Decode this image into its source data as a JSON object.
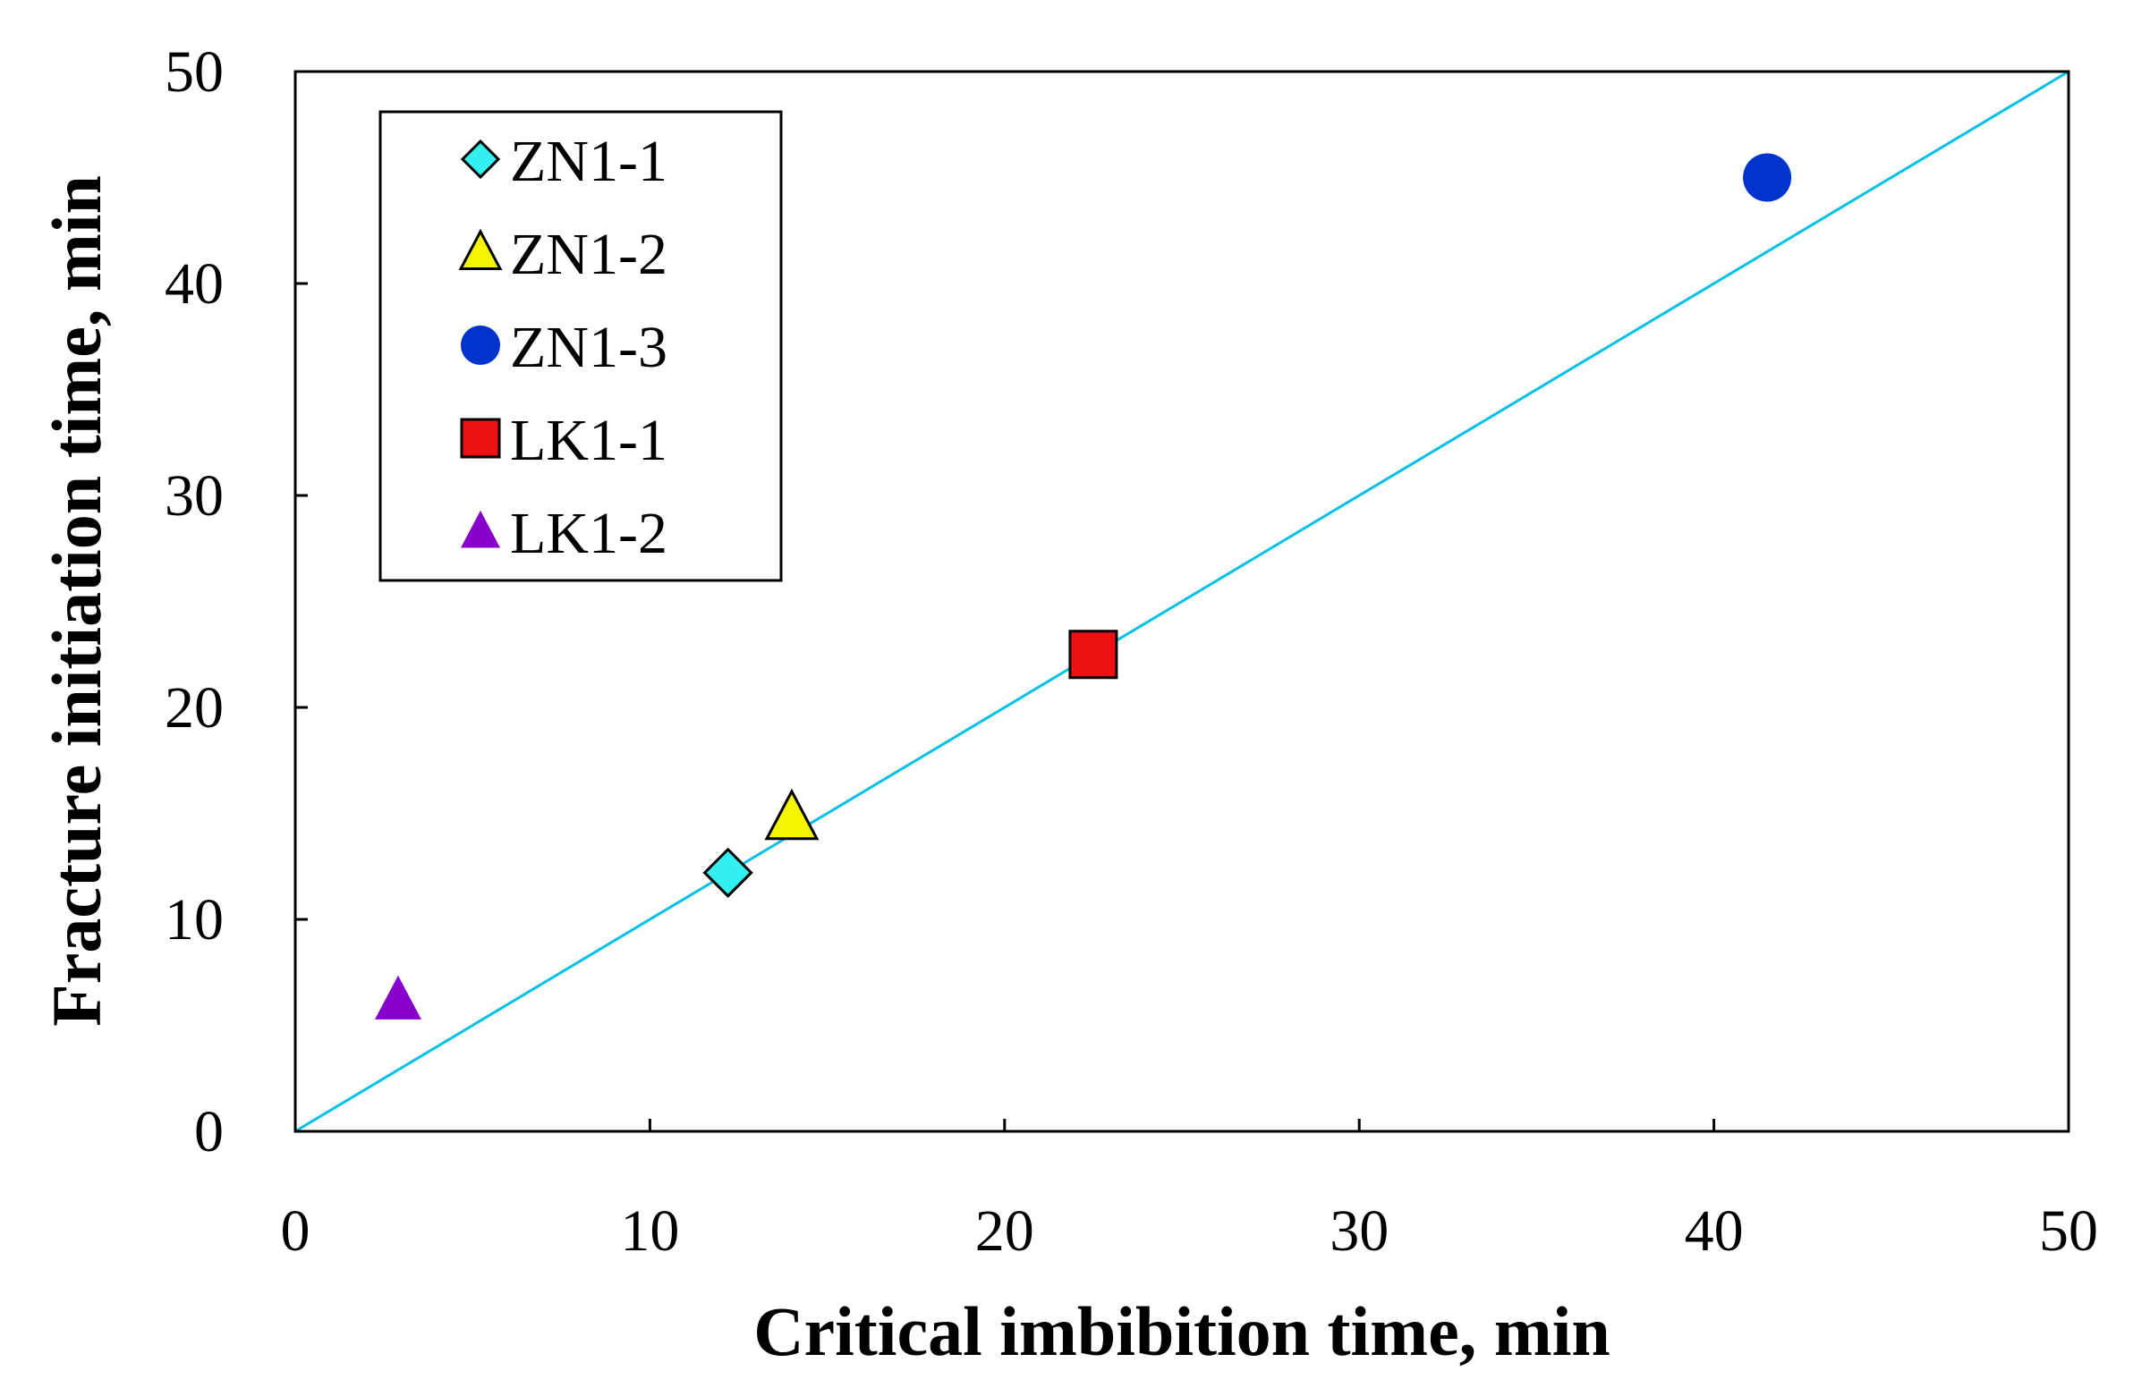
{
  "chart_data": {
    "type": "scatter",
    "xlabel": "Critical imbibition time, min",
    "ylabel": "Fracture initiation time, min",
    "xlim": [
      0,
      50
    ],
    "ylim": [
      0,
      50
    ],
    "xticks": [
      "0",
      "10",
      "20",
      "30",
      "40",
      "50"
    ],
    "yticks": [
      "0",
      "10",
      "20",
      "30",
      "40",
      "50"
    ],
    "grid": false,
    "legend_position": "top-left",
    "reference_line": {
      "x": [
        0,
        50
      ],
      "y": [
        0,
        50
      ],
      "color": "#00c0e8"
    },
    "series": [
      {
        "name": "ZN1-1",
        "marker": "diamond",
        "color": "#33f0f0",
        "x": [
          12.2
        ],
        "y": [
          12.2
        ]
      },
      {
        "name": "ZN1-2",
        "marker": "triangle-open",
        "color": "#f5f500",
        "x": [
          14.0
        ],
        "y": [
          14.8
        ]
      },
      {
        "name": "ZN1-3",
        "marker": "circle",
        "color": "#0033cc",
        "x": [
          41.5
        ],
        "y": [
          45.0
        ]
      },
      {
        "name": "LK1-1",
        "marker": "square",
        "color": "#ee1111",
        "x": [
          22.5
        ],
        "y": [
          22.5
        ]
      },
      {
        "name": "LK1-2",
        "marker": "triangle-filled",
        "color": "#8800cc",
        "x": [
          2.9
        ],
        "y": [
          6.2
        ]
      }
    ]
  }
}
